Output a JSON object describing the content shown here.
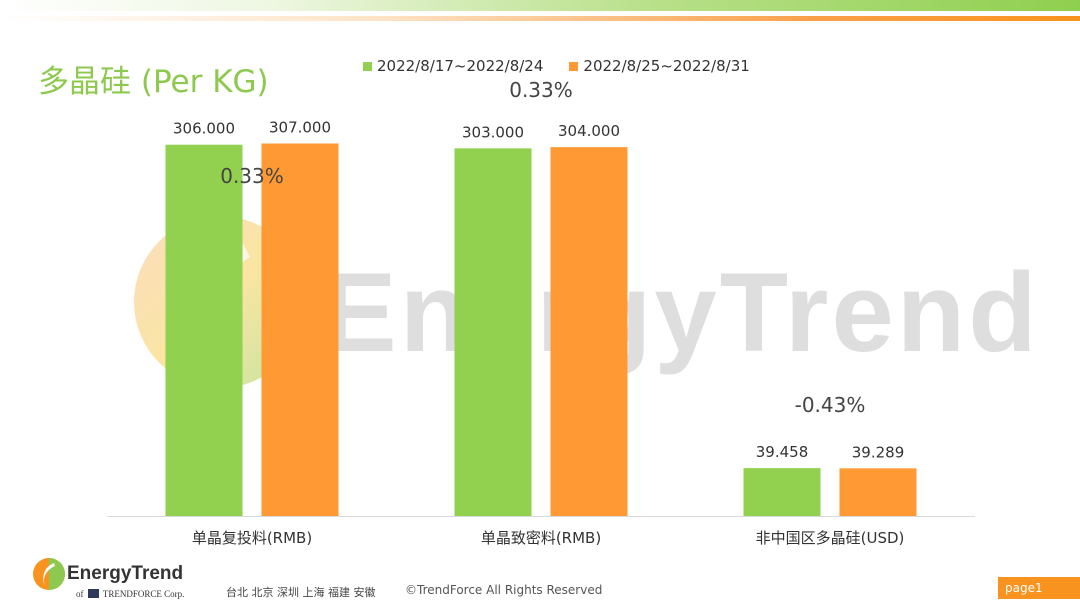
{
  "title": "多晶硅 (Per KG)",
  "colors": {
    "green": "#92d050",
    "orange": "#ff9933",
    "title_green": "#8dc94e"
  },
  "chart_data": {
    "type": "bar",
    "title": "多晶硅 (Per KG)",
    "categories": [
      "单晶复投料(RMB)",
      "单晶致密料(RMB)",
      "非中国区多晶硅(USD)"
    ],
    "series": [
      {
        "name": "2022/8/17~2022/8/24",
        "color": "#92d050",
        "values": [
          306.0,
          303.0,
          39.458
        ],
        "labels": [
          "306.000",
          "303.000",
          "39.458"
        ]
      },
      {
        "name": "2022/8/25~2022/8/31",
        "color": "#ff9933",
        "values": [
          307.0,
          304.0,
          39.289
        ],
        "labels": [
          "307.000",
          "304.000",
          "39.289"
        ]
      }
    ],
    "change_labels": [
      "0.33%",
      "0.33%",
      "-0.43%"
    ],
    "legend_position": "top",
    "grid": false,
    "yaxis_visible": false,
    "ylim": [
      0,
      320
    ]
  },
  "watermark": "EnergyTrend",
  "footer": {
    "brand": "EnergyTrend",
    "sub_prefix": "of",
    "sub_brand": "TRENDFORCE Corp.",
    "cities": "台北  北京  深圳  上海  福建  安徽",
    "copyright": "©TrendForce All Rights Reserved",
    "page": "page1"
  }
}
